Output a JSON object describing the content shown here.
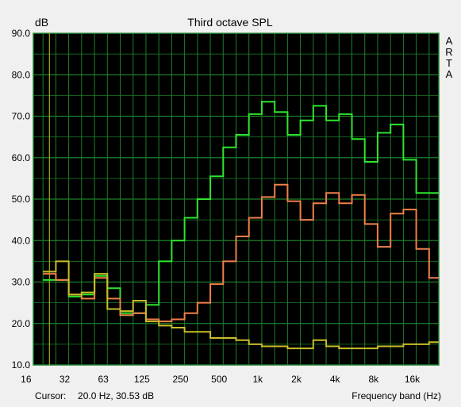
{
  "chart_data": {
    "type": "line",
    "title": "Third octave SPL",
    "ylabel": "dB",
    "xlabel": "Frequency band (Hz)",
    "side_text": "ARTA",
    "ylim": [
      10,
      90
    ],
    "y_ticks": [
      "90.0",
      "80.0",
      "70.0",
      "60.0",
      "50.0",
      "40.0",
      "30.0",
      "20.0",
      "10.0"
    ],
    "x_tick_labels": [
      "16",
      "32",
      "63",
      "125",
      "250",
      "500",
      "1k",
      "2k",
      "4k",
      "8k",
      "16k"
    ],
    "x_bands": [
      20,
      25,
      31.5,
      40,
      50,
      63,
      80,
      100,
      125,
      160,
      200,
      250,
      315,
      400,
      500,
      630,
      800,
      1000,
      1250,
      1600,
      2000,
      2500,
      3150,
      4000,
      5000,
      6300,
      8000,
      10000,
      12500,
      16000,
      20000
    ],
    "grid": true,
    "background": "#000000",
    "grid_color": "#1d7f2a",
    "cursor_color": "#c8c800",
    "series": [
      {
        "color": "#2ee62e",
        "values": [
          30.5,
          30.5,
          26.5,
          27,
          31.5,
          28.5,
          22.5,
          22.5,
          24.5,
          35,
          40,
          45.5,
          50,
          55.5,
          62.5,
          65.5,
          70.5,
          73.5,
          71,
          65.5,
          69,
          72.5,
          69,
          70.5,
          64.5,
          59,
          66,
          68,
          59.5,
          51.5,
          51.5
        ]
      },
      {
        "color": "#f0804a",
        "values": [
          32,
          30.5,
          27,
          26,
          31,
          26,
          22,
          22.5,
          21,
          20.5,
          21,
          22.5,
          25,
          29.5,
          35,
          41,
          45.5,
          50.5,
          53.5,
          49.5,
          45,
          49,
          51.5,
          49,
          51,
          44,
          38.5,
          46.5,
          47.5,
          38,
          31
        ]
      },
      {
        "color": "#c8be28",
        "values": [
          32.5,
          35,
          27,
          27.5,
          32,
          23.5,
          23,
          25.5,
          20.5,
          19.5,
          19,
          18,
          18,
          16.5,
          16.5,
          16,
          15,
          14.5,
          14.5,
          14,
          14,
          16,
          14.5,
          14,
          14,
          14,
          14.5,
          14.5,
          15,
          15,
          15.5
        ]
      }
    ]
  },
  "cursor": {
    "label": "Cursor:",
    "value": "20.0 Hz, 30.53 dB"
  }
}
